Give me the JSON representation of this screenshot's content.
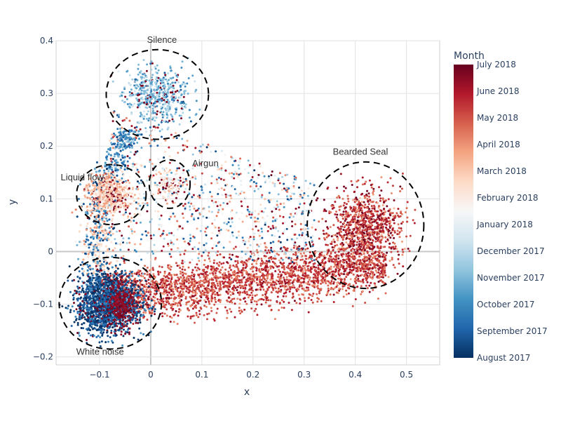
{
  "chart_data": {
    "type": "scatter",
    "xlabel": "x",
    "ylabel": "y",
    "xlim": [
      -0.185,
      0.565
    ],
    "ylim": [
      -0.215,
      0.4
    ],
    "x_ticks": [
      -0.1,
      0,
      0.1,
      0.2,
      0.3,
      0.4,
      0.5
    ],
    "x_tick_labels": [
      "−0.1",
      "0",
      "0.1",
      "0.2",
      "0.3",
      "0.4",
      "0.5"
    ],
    "y_ticks": [
      -0.2,
      -0.1,
      0,
      0.1,
      0.2,
      0.3,
      0.4
    ],
    "y_tick_labels": [
      "−0.2",
      "−0.1",
      "0",
      "0.1",
      "0.2",
      "0.3",
      "0.4"
    ],
    "grid": true,
    "colorbar": {
      "title": "Month",
      "labels": [
        "August 2017",
        "September 2017",
        "October 2017",
        "November 2017",
        "December 2017",
        "January 2018",
        "February 2018",
        "March 2018",
        "April 2018",
        "May 2018",
        "June 2018",
        "July 2018"
      ],
      "colorscale": [
        "#053061",
        "#2166ac",
        "#4393c3",
        "#92c5de",
        "#d1e5f0",
        "#f7f7f7",
        "#fddbc7",
        "#f4a582",
        "#d6604d",
        "#b2182b",
        "#67001f"
      ]
    },
    "clusters": [
      {
        "label": "Silence",
        "cx": 0.013,
        "cy": 0.298,
        "rx": 0.1,
        "ry": 0.085,
        "month_center": 3,
        "n": 520
      },
      {
        "label": "Airgun",
        "cx": 0.037,
        "cy": 0.128,
        "rx": 0.04,
        "ry": 0.046,
        "month_center": 6,
        "n": 160
      },
      {
        "label": "Liquid flow",
        "cx": -0.077,
        "cy": 0.108,
        "rx": 0.068,
        "ry": 0.057,
        "month_center": 7,
        "n": 520
      },
      {
        "label": "White noise",
        "cx": -0.079,
        "cy": -0.098,
        "rx": 0.1,
        "ry": 0.087,
        "month_center": 0.8,
        "n": 1500
      },
      {
        "label": "Bearded Seal",
        "cx": 0.42,
        "cy": 0.05,
        "rx": 0.114,
        "ry": 0.12,
        "month_center": 9.3,
        "n": 900
      }
    ],
    "annotations": [
      {
        "text": "Silence",
        "x": 0.022,
        "y": 0.396
      },
      {
        "text": "Airgun",
        "x": 0.107,
        "y": 0.162
      },
      {
        "text": "Liquid flow",
        "x": -0.134,
        "y": 0.135
      },
      {
        "text": "White noise",
        "x": -0.099,
        "y": -0.196
      },
      {
        "text": "Bearded Seal",
        "x": 0.41,
        "y": 0.184
      }
    ]
  }
}
